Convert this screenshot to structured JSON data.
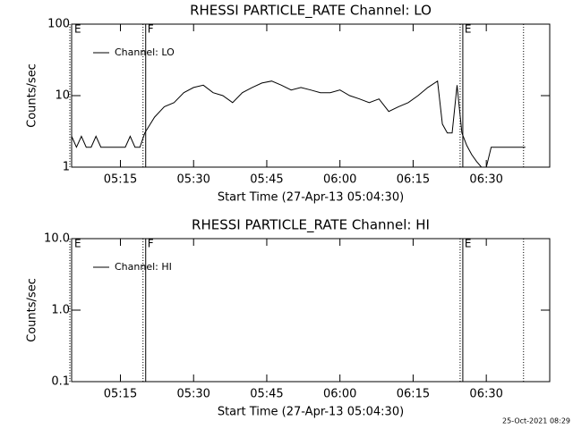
{
  "chart_data": [
    {
      "type": "line",
      "title": "RHESSI PARTICLE_RATE Channel: LO",
      "xlabel": "Start Time (27-Apr-13 05:04:30)",
      "ylabel": "Counts/sec",
      "log_y": true,
      "ylim": [
        1,
        100
      ],
      "yticks": [
        1,
        10,
        100
      ],
      "xlim": [
        "05:05",
        "06:43"
      ],
      "xticks": [
        "05:15",
        "05:30",
        "05:45",
        "06:00",
        "06:15",
        "06:30"
      ],
      "legend": "top-left",
      "markers": [
        {
          "x": "05:05",
          "label": "E"
        },
        {
          "x": "05:20",
          "label": "F"
        },
        {
          "x": "06:25",
          "label": "E"
        },
        {
          "x": "06:38"
        }
      ],
      "x": [
        "05:05",
        "05:06",
        "05:07",
        "05:08",
        "05:09",
        "05:10",
        "05:11",
        "05:12",
        "05:13",
        "05:14",
        "05:15",
        "05:16",
        "05:17",
        "05:18",
        "05:19",
        "05:20",
        "05:22",
        "05:24",
        "05:26",
        "05:28",
        "05:30",
        "05:32",
        "05:34",
        "05:36",
        "05:38",
        "05:40",
        "05:42",
        "05:44",
        "05:46",
        "05:48",
        "05:50",
        "05:52",
        "05:54",
        "05:56",
        "05:58",
        "06:00",
        "06:02",
        "06:04",
        "06:06",
        "06:08",
        "06:10",
        "06:12",
        "06:14",
        "06:16",
        "06:18",
        "06:20",
        "06:21",
        "06:22",
        "06:23",
        "06:24",
        "06:25",
        "06:26",
        "06:27",
        "06:28",
        "06:29",
        "06:30",
        "06:31",
        "06:33",
        "06:35",
        "06:38"
      ],
      "series": [
        {
          "name": "Channel: LO",
          "color": "#000000",
          "values": [
            2.7,
            1.9,
            2.7,
            1.9,
            1.9,
            2.7,
            1.9,
            1.9,
            1.9,
            1.9,
            1.9,
            1.9,
            2.7,
            1.9,
            1.9,
            3,
            5,
            7,
            8,
            11,
            13,
            14,
            11,
            10,
            8,
            11,
            13,
            15,
            16,
            14,
            12,
            13,
            12,
            11,
            11,
            12,
            10,
            9,
            8,
            9,
            6,
            7,
            8,
            10,
            13,
            16,
            4,
            3,
            3,
            14,
            3,
            2,
            1.5,
            1.2,
            1,
            1,
            1.9,
            1.9,
            1.9,
            1.9
          ]
        }
      ]
    },
    {
      "type": "line",
      "title": "RHESSI PARTICLE_RATE Channel: HI",
      "xlabel": "Start Time (27-Apr-13 05:04:30)",
      "ylabel": "Counts/sec",
      "log_y": true,
      "ylim": [
        0.1,
        10
      ],
      "yticks": [
        0.1,
        {
          "value": 1,
          "label": "1.0"
        },
        {
          "value": 10,
          "label": "10.0"
        }
      ],
      "xlim": [
        "05:05",
        "06:43"
      ],
      "xticks": [
        "05:15",
        "05:30",
        "05:45",
        "06:00",
        "06:15",
        "06:30"
      ],
      "legend": "top-left",
      "markers": [
        {
          "x": "05:05",
          "label": "E"
        },
        {
          "x": "05:20",
          "label": "F"
        },
        {
          "x": "06:25",
          "label": "E"
        },
        {
          "x": "06:38"
        }
      ],
      "x": [],
      "series": [
        {
          "name": "Channel: HI",
          "color": "#000000",
          "values": []
        }
      ]
    }
  ],
  "footer": "25-Oct-2021 08:29"
}
